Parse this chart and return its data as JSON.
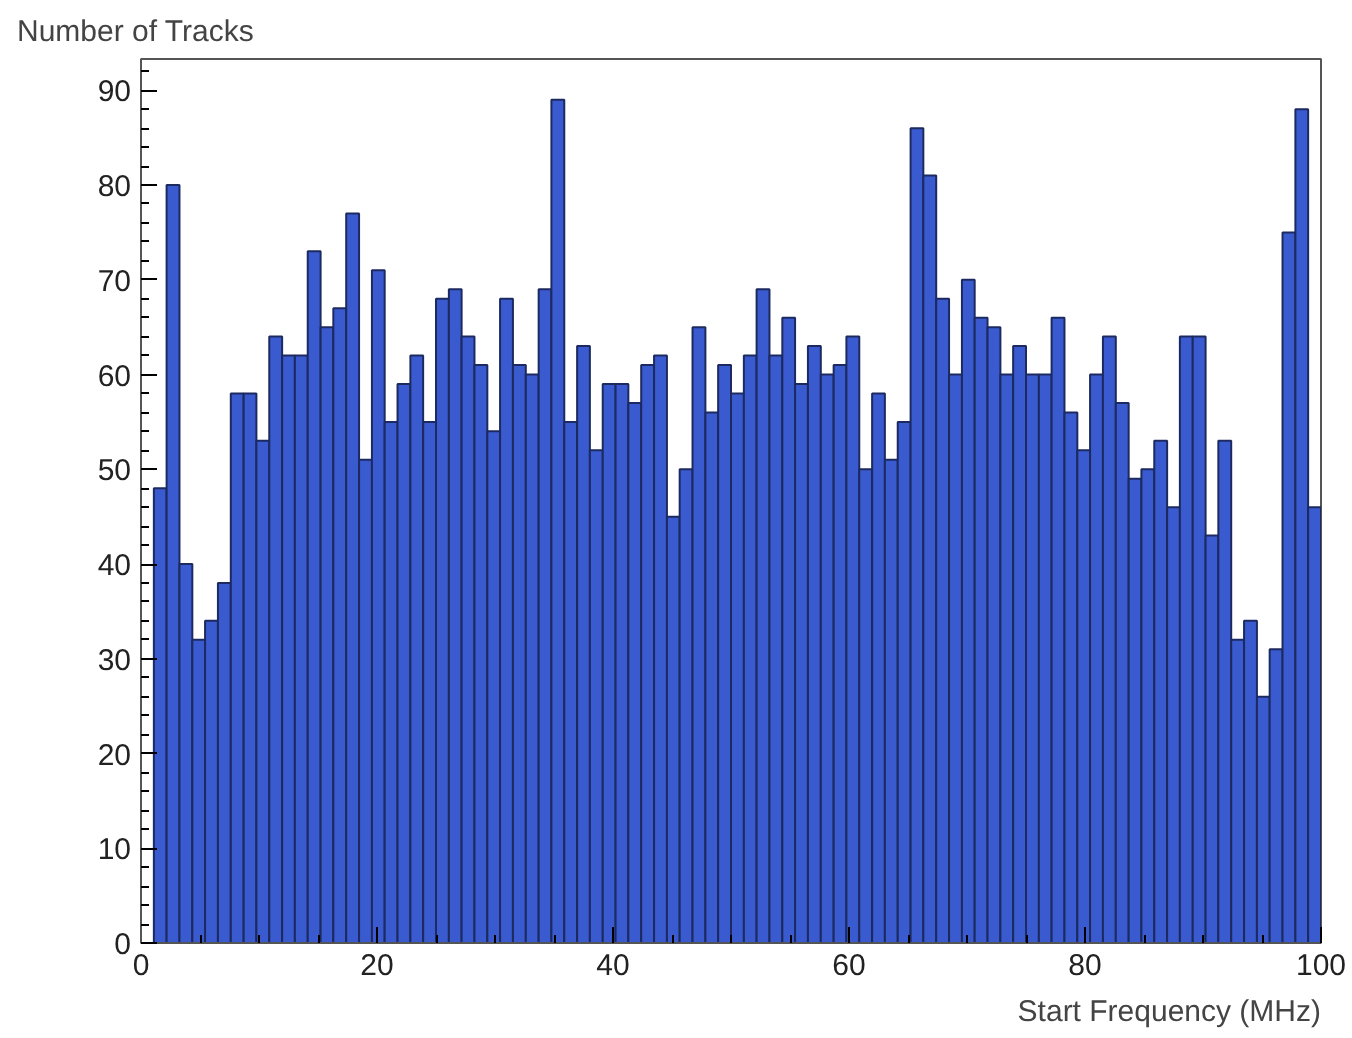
{
  "chart_data": {
    "type": "histogram",
    "xlabel": "Start Frequency (MHz)",
    "ylabel": "Number of Tracks",
    "color": "#3a5bd0",
    "bins": [
      0,
      1.09,
      2.17,
      3.26,
      4.35,
      5.43,
      6.52,
      7.61,
      8.7,
      9.78,
      10.87,
      11.96,
      13.04,
      14.13,
      15.22,
      16.3,
      17.39,
      18.48,
      19.57,
      20.65,
      21.74,
      22.83,
      23.91,
      25,
      26.09,
      27.17,
      28.26,
      29.35,
      30.43,
      31.52,
      32.61,
      33.7,
      34.78,
      35.87,
      36.96,
      38.04,
      39.13,
      40.22,
      41.3,
      42.39,
      43.48,
      44.57,
      45.65,
      46.74,
      47.83,
      48.91,
      50,
      51.09,
      52.17,
      53.26,
      54.35,
      55.43,
      56.52,
      57.61,
      58.7,
      59.78,
      60.87,
      61.96,
      63.04,
      64.13,
      65.22,
      66.3,
      67.39,
      68.48,
      69.57,
      70.65,
      71.74,
      72.83,
      73.91,
      75,
      76.09,
      77.17,
      78.26,
      79.35,
      80.43,
      81.52,
      82.61,
      83.7,
      84.78,
      85.87,
      86.96,
      88.04,
      89.13,
      90.22,
      91.3,
      92.39,
      93.48,
      94.57,
      95.65,
      96.74,
      97.83,
      98.91,
      100
    ],
    "values": [
      0,
      48,
      80,
      40,
      32,
      34,
      38,
      58,
      58,
      53,
      64,
      62,
      62,
      73,
      65,
      67,
      77,
      51,
      71,
      55,
      59,
      62,
      55,
      68,
      69,
      64,
      61,
      54,
      68,
      61,
      60,
      69,
      89,
      55,
      63,
      52,
      59,
      59,
      57,
      61,
      62,
      45,
      50,
      65,
      56,
      61,
      58,
      62,
      69,
      62,
      66,
      59,
      63,
      60,
      61,
      64,
      50,
      58,
      51,
      55,
      86,
      81,
      68,
      60,
      70,
      66,
      65,
      60,
      63,
      60,
      60,
      66,
      56,
      52,
      60,
      64,
      57,
      49,
      50,
      53,
      46,
      64,
      64,
      43,
      53,
      32,
      34,
      26,
      31,
      75,
      88,
      46
    ],
    "xlim": [
      0,
      100
    ],
    "xticks": [
      0,
      20,
      40,
      60,
      80,
      100
    ],
    "ylim": [
      0,
      93.3
    ],
    "yticks": [
      0,
      10,
      20,
      30,
      40,
      50,
      60,
      70,
      80,
      90
    ],
    "grid": false
  }
}
